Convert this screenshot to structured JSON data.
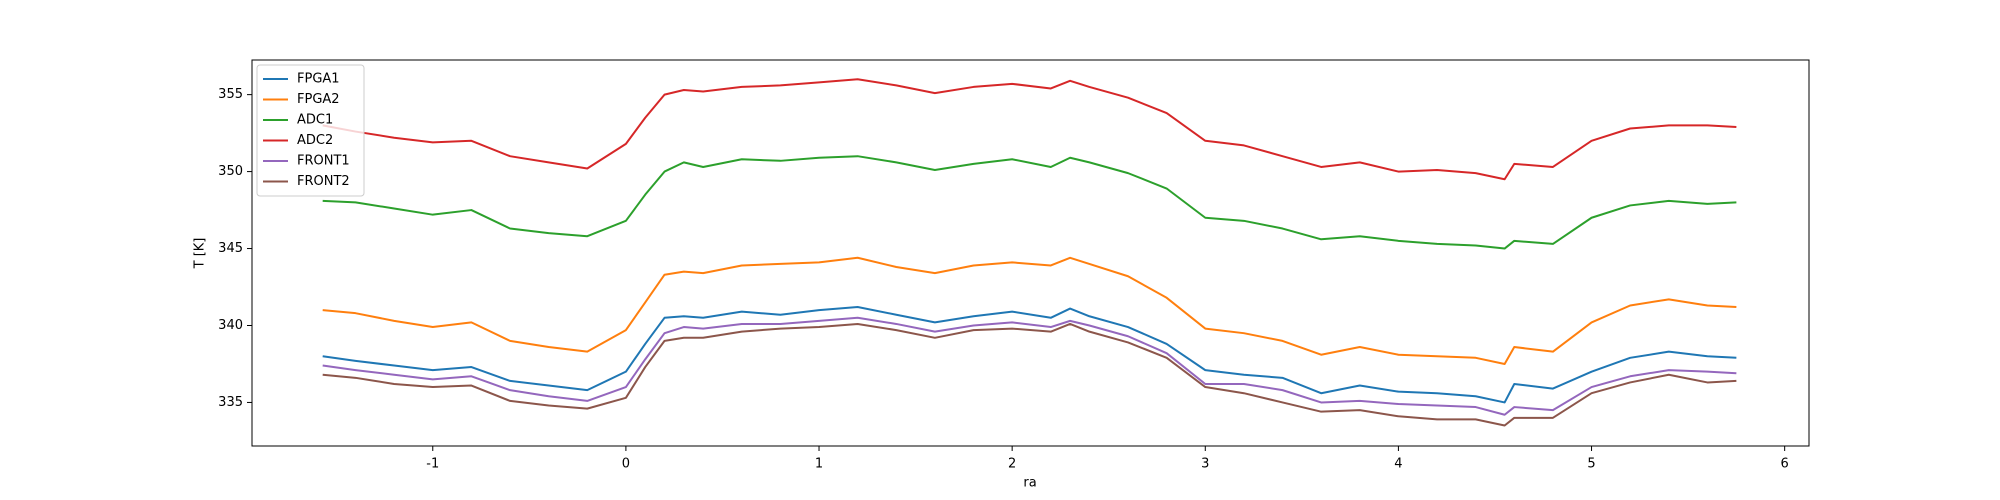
{
  "chart_data": {
    "type": "line",
    "xlabel": "ra",
    "ylabel": "T [K]",
    "x": [
      -1.57,
      -1.4,
      -1.2,
      -1.0,
      -0.8,
      -0.6,
      -0.4,
      -0.2,
      0,
      0.1,
      0.2,
      0.3,
      0.4,
      0.6,
      0.8,
      1.0,
      1.2,
      1.4,
      1.6,
      1.8,
      2.0,
      2.2,
      2.3,
      2.4,
      2.6,
      2.8,
      3.0,
      3.2,
      3.4,
      3.6,
      3.8,
      4.0,
      4.2,
      4.4,
      4.55,
      4.6,
      4.8,
      5.0,
      5.2,
      5.4,
      5.6,
      5.75
    ],
    "series": [
      {
        "name": "FPGA1",
        "color": "#1f77b4",
        "values": [
          338,
          337.7,
          337.4,
          337.1,
          337.3,
          336.4,
          336.1,
          335.8,
          337,
          338.8,
          340.5,
          340.6,
          340.5,
          340.9,
          340.7,
          341,
          341.2,
          340.7,
          340.2,
          340.6,
          340.9,
          340.5,
          341.1,
          340.6,
          339.9,
          338.8,
          337.1,
          336.8,
          336.6,
          335.6,
          336.1,
          335.7,
          335.6,
          335.4,
          335,
          336.2,
          335.9,
          337,
          337.9,
          338.3,
          338,
          337.9
        ]
      },
      {
        "name": "FPGA2",
        "color": "#ff7f0e",
        "values": [
          341,
          340.8,
          340.3,
          339.9,
          340.2,
          339,
          338.6,
          338.3,
          339.7,
          341.5,
          343.3,
          343.5,
          343.4,
          343.9,
          344,
          344.1,
          344.4,
          343.8,
          343.4,
          343.9,
          344.1,
          343.9,
          344.4,
          344,
          343.2,
          341.8,
          339.8,
          339.5,
          339,
          338.1,
          338.6,
          338.1,
          338,
          337.9,
          337.5,
          338.6,
          338.3,
          340.2,
          341.3,
          341.7,
          341.3,
          341.2
        ]
      },
      {
        "name": "ADC1",
        "color": "#2ca02c",
        "values": [
          348.1,
          348,
          347.6,
          347.2,
          347.5,
          346.3,
          346,
          345.8,
          346.8,
          348.5,
          350,
          350.6,
          350.3,
          350.8,
          350.7,
          350.9,
          351,
          350.6,
          350.1,
          350.5,
          350.8,
          350.3,
          350.9,
          350.6,
          349.9,
          348.9,
          347,
          346.8,
          346.3,
          345.6,
          345.8,
          345.5,
          345.3,
          345.2,
          345,
          345.5,
          345.3,
          347,
          347.8,
          348.1,
          347.9,
          348
        ]
      },
      {
        "name": "ADC2",
        "color": "#d62728",
        "values": [
          353,
          352.6,
          352.2,
          351.9,
          352,
          351,
          350.6,
          350.2,
          351.8,
          353.5,
          355,
          355.3,
          355.2,
          355.5,
          355.6,
          355.8,
          356,
          355.6,
          355.1,
          355.5,
          355.7,
          355.4,
          355.9,
          355.5,
          354.8,
          353.8,
          352,
          351.7,
          351,
          350.3,
          350.6,
          350,
          350.1,
          349.9,
          349.5,
          350.5,
          350.3,
          352,
          352.8,
          353,
          353,
          352.9
        ]
      },
      {
        "name": "FRONT1",
        "color": "#9467bd",
        "values": [
          337.4,
          337.1,
          336.8,
          336.5,
          336.7,
          335.8,
          335.4,
          335.1,
          336,
          337.8,
          339.5,
          339.9,
          339.8,
          340.1,
          340.1,
          340.3,
          340.5,
          340.1,
          339.6,
          340,
          340.2,
          339.9,
          340.3,
          340,
          339.3,
          338.2,
          336.2,
          336.2,
          335.8,
          335,
          335.1,
          334.9,
          334.8,
          334.7,
          334.2,
          334.7,
          334.5,
          336,
          336.7,
          337.1,
          337,
          336.9
        ]
      },
      {
        "name": "FRONT2",
        "color": "#8c564b",
        "values": [
          336.8,
          336.6,
          336.2,
          336,
          336.1,
          335.1,
          334.8,
          334.6,
          335.3,
          337.3,
          339,
          339.2,
          339.2,
          339.6,
          339.8,
          339.9,
          340.1,
          339.7,
          339.2,
          339.7,
          339.8,
          339.6,
          340.1,
          339.6,
          338.9,
          337.9,
          336,
          335.6,
          335,
          334.4,
          334.5,
          334.1,
          333.9,
          333.9,
          333.5,
          334,
          334,
          335.6,
          336.3,
          336.8,
          336.3,
          336.4
        ]
      }
    ],
    "xlim": [
      -1.936,
      6.126
    ],
    "xticks": [
      -1,
      0,
      1,
      2,
      3,
      4,
      5,
      6
    ],
    "ylim": [
      332.17,
      357.25
    ],
    "yticks": [
      335,
      340,
      345,
      350,
      355
    ],
    "legend": "upper left",
    "grid": false
  }
}
